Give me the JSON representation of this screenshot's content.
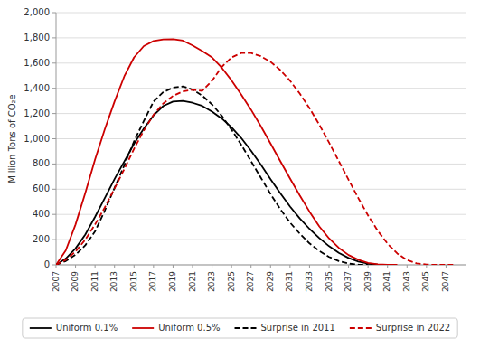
{
  "chart_data": {
    "type": "line",
    "y_label": "Million Tons of CO₂e",
    "xlim": [
      2007,
      2049
    ],
    "xticks": [
      2007,
      2009,
      2011,
      2013,
      2015,
      2017,
      2019,
      2021,
      2023,
      2025,
      2027,
      2029,
      2031,
      2033,
      2035,
      2037,
      2039,
      2041,
      2043,
      2045,
      2047
    ],
    "ylim": [
      0,
      2000
    ],
    "yticks": [
      0,
      200,
      400,
      600,
      800,
      {
        "value": 1000,
        "label": "1,000"
      },
      {
        "value": 1200,
        "label": "1,200"
      },
      {
        "value": 1400,
        "label": "1,400"
      },
      {
        "value": 1600,
        "label": "1,600"
      },
      {
        "value": 1800,
        "label": "1,800"
      },
      {
        "value": 2000,
        "label": "2,000"
      }
    ],
    "grid": true,
    "legend": "bottom",
    "series": [
      {
        "name": "Uniform 0.1%",
        "color": "#000000",
        "line_style": "solid",
        "x": [
          2007,
          2008,
          2009,
          2010,
          2011,
          2012,
          2013,
          2014,
          2015,
          2016,
          2017,
          2018,
          2019,
          2020,
          2021,
          2022,
          2023,
          2024,
          2025,
          2026,
          2027,
          2028,
          2029,
          2030,
          2031,
          2032,
          2033,
          2034,
          2035,
          2036,
          2037,
          2038,
          2039,
          2040,
          2041
        ],
        "values": [
          0,
          50,
          130,
          240,
          380,
          530,
          680,
          820,
          960,
          1080,
          1185,
          1260,
          1295,
          1300,
          1285,
          1260,
          1215,
          1160,
          1090,
          1005,
          905,
          795,
          680,
          568,
          462,
          368,
          285,
          212,
          148,
          95,
          55,
          26,
          9,
          2,
          0
        ]
      },
      {
        "name": "Uniform 0.5%",
        "color": "#cc0000",
        "line_style": "solid",
        "x": [
          2007,
          2008,
          2009,
          2010,
          2011,
          2012,
          2013,
          2014,
          2015,
          2016,
          2017,
          2018,
          2019,
          2020,
          2021,
          2022,
          2023,
          2024,
          2025,
          2026,
          2027,
          2028,
          2029,
          2030,
          2031,
          2032,
          2033,
          2034,
          2035,
          2036,
          2037,
          2038,
          2039,
          2040,
          2041,
          2042
        ],
        "values": [
          0,
          115,
          320,
          570,
          835,
          1075,
          1295,
          1495,
          1645,
          1735,
          1775,
          1787,
          1790,
          1778,
          1740,
          1695,
          1645,
          1563,
          1463,
          1350,
          1230,
          1100,
          962,
          823,
          685,
          550,
          422,
          305,
          210,
          135,
          78,
          40,
          16,
          5,
          1,
          0
        ]
      },
      {
        "name": "Surprise in 2011",
        "color": "#000000",
        "line_style": "dashed",
        "x": [
          2007,
          2008,
          2009,
          2010,
          2011,
          2012,
          2013,
          2014,
          2015,
          2016,
          2017,
          2018,
          2019,
          2020,
          2021,
          2022,
          2023,
          2024,
          2025,
          2026,
          2027,
          2028,
          2029,
          2030,
          2031,
          2032,
          2033,
          2034,
          2035,
          2036,
          2037,
          2038,
          2039
        ],
        "values": [
          0,
          30,
          80,
          155,
          265,
          430,
          610,
          790,
          980,
          1140,
          1295,
          1370,
          1405,
          1415,
          1390,
          1342,
          1272,
          1182,
          1072,
          952,
          822,
          692,
          562,
          442,
          335,
          247,
          170,
          110,
          63,
          30,
          10,
          2,
          0
        ]
      },
      {
        "name": "Surprise in 2022",
        "color": "#cc0000",
        "line_style": "dashed",
        "x": [
          2007,
          2008,
          2009,
          2010,
          2011,
          2012,
          2013,
          2014,
          2015,
          2016,
          2017,
          2018,
          2019,
          2020,
          2021,
          2022,
          2023,
          2024,
          2025,
          2026,
          2027,
          2028,
          2029,
          2030,
          2031,
          2032,
          2033,
          2034,
          2035,
          2036,
          2037,
          2038,
          2039,
          2040,
          2041,
          2042,
          2043,
          2044,
          2045,
          2046,
          2047,
          2048
        ],
        "values": [
          0,
          40,
          105,
          200,
          320,
          455,
          605,
          760,
          920,
          1065,
          1190,
          1280,
          1340,
          1375,
          1388,
          1380,
          1460,
          1570,
          1645,
          1680,
          1680,
          1655,
          1610,
          1545,
          1460,
          1358,
          1242,
          1112,
          970,
          823,
          675,
          530,
          392,
          270,
          168,
          90,
          38,
          12,
          3,
          0,
          0,
          0
        ]
      }
    ]
  }
}
